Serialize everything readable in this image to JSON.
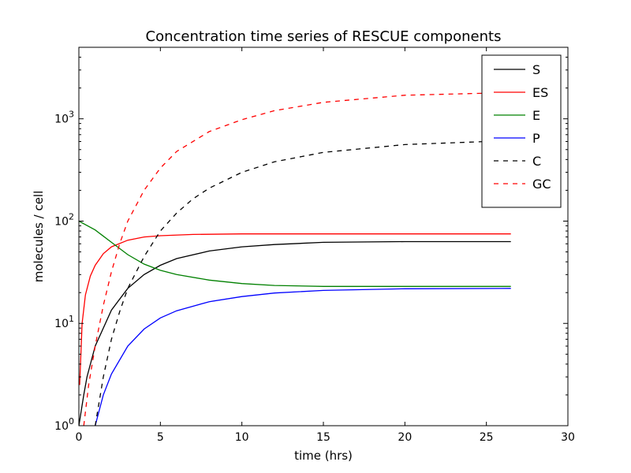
{
  "chart_data": {
    "type": "line",
    "title": "Concentration time series of RESCUE components",
    "xlabel": "time (hrs)",
    "ylabel": "molecules / cell",
    "xlim": [
      0,
      30
    ],
    "ylim": [
      1,
      5000
    ],
    "yscale": "log",
    "grid": false,
    "legend_position": "top-right",
    "x_ticks": [
      "0",
      "5",
      "10",
      "15",
      "20",
      "25",
      "30"
    ],
    "y_ticks": [
      {
        "base": "10",
        "exp": "0"
      },
      {
        "base": "10",
        "exp": "1"
      },
      {
        "base": "10",
        "exp": "2"
      },
      {
        "base": "10",
        "exp": "3"
      }
    ],
    "series": [
      {
        "name": "S",
        "color": "#000000",
        "dash": "solid",
        "x": [
          0,
          0.3,
          0.5,
          1,
          2,
          3,
          4,
          5,
          6,
          8,
          10,
          12,
          15,
          20,
          26.5
        ],
        "y": [
          1,
          2.0,
          3.0,
          6.0,
          13.5,
          22,
          30,
          37,
          43,
          51,
          56,
          59,
          62,
          63,
          63
        ]
      },
      {
        "name": "ES",
        "color": "#ff0000",
        "dash": "solid",
        "x": [
          0.05,
          0.2,
          0.4,
          0.7,
          1,
          1.5,
          2,
          3,
          4,
          5,
          7,
          10,
          15,
          26.5
        ],
        "y": [
          2.5,
          10,
          19,
          29,
          37,
          48,
          56,
          65,
          70,
          72,
          74,
          75,
          75,
          75
        ]
      },
      {
        "name": "E",
        "color": "#008000",
        "dash": "solid",
        "x": [
          0,
          1,
          2,
          3,
          4,
          5,
          6,
          8,
          10,
          12,
          15,
          20,
          26.5
        ],
        "y": [
          100,
          82,
          62,
          47,
          38,
          33,
          30,
          26.5,
          24.5,
          23.5,
          23,
          23,
          23
        ]
      },
      {
        "name": "P",
        "color": "#0000ff",
        "dash": "solid",
        "x": [
          1.0,
          1.5,
          2,
          3,
          4,
          5,
          6,
          8,
          10,
          12,
          15,
          20,
          26.5
        ],
        "y": [
          1.0,
          2.0,
          3.2,
          6.0,
          8.8,
          11.3,
          13.3,
          16.3,
          18.3,
          19.8,
          21,
          21.8,
          22
        ]
      },
      {
        "name": "C",
        "color": "#000000",
        "dash": "dashed",
        "x": [
          1.0,
          1.5,
          2,
          2.5,
          3,
          4,
          5,
          6,
          7,
          8,
          10,
          12,
          15,
          20,
          25
        ],
        "y": [
          1,
          3,
          7,
          13,
          22,
          45,
          80,
          120,
          165,
          210,
          300,
          380,
          470,
          560,
          600
        ]
      },
      {
        "name": "GC",
        "color": "#ff0000",
        "dash": "dashed",
        "x": [
          0.3,
          0.6,
          1,
          1.5,
          2,
          2.5,
          3,
          4,
          5,
          6,
          8,
          10,
          12,
          15,
          20,
          25
        ],
        "y": [
          1,
          2.5,
          6,
          15,
          32,
          60,
          100,
          200,
          330,
          480,
          750,
          980,
          1200,
          1450,
          1700,
          1780
        ]
      }
    ]
  }
}
